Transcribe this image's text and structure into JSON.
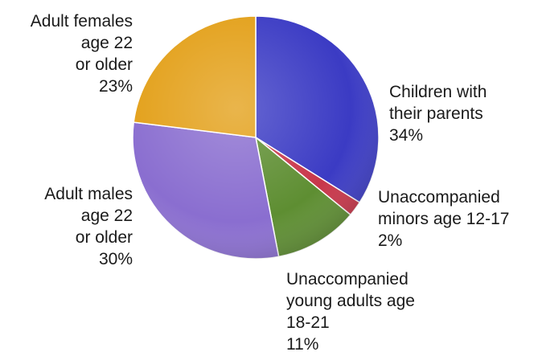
{
  "chart_data": {
    "type": "pie",
    "title": "",
    "slices": [
      {
        "label_lines": [
          "Children with",
          "their parents"
        ],
        "percent_text": "34%",
        "value": 34,
        "color": "#3b3bc4"
      },
      {
        "label_lines": [
          "Unaccompanied",
          "minors age 12-17"
        ],
        "percent_text": "2%",
        "value": 2,
        "color": "#c8364a"
      },
      {
        "label_lines": [
          "Unaccompanied",
          "young adults age",
          "18-21"
        ],
        "percent_text": "11%",
        "value": 11,
        "color": "#5e8e32"
      },
      {
        "label_lines": [
          "Adult males",
          "age 22",
          "or older"
        ],
        "percent_text": "30%",
        "value": 30,
        "color": "#8a6ed0"
      },
      {
        "label_lines": [
          "Adult females",
          "age 22",
          "or older"
        ],
        "percent_text": "23%",
        "value": 23,
        "color": "#e3a019"
      }
    ],
    "start_angle_deg": 0,
    "direction": "clockwise",
    "style": "3d-shaded",
    "legend": "none"
  }
}
